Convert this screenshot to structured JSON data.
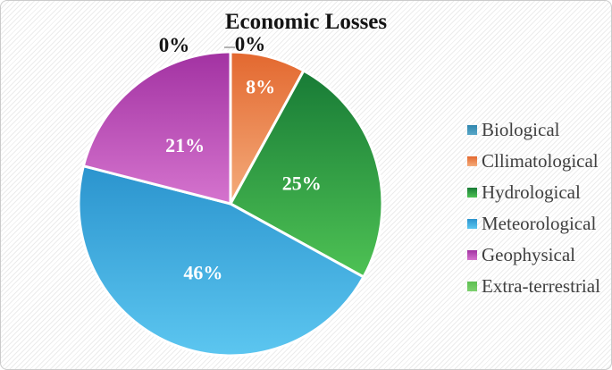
{
  "canvas": {
    "background_stripe_light": "#ffffff",
    "background_stripe_dark": "#ececec",
    "border_color": "#cbcbcb"
  },
  "chart_data": {
    "type": "pie",
    "title": "Economic Losses",
    "unit": "%",
    "start_angle_deg": 0,
    "direction": "clockwise",
    "legend_position": "right",
    "grid": false,
    "inside_label_color": "#ffffff",
    "outside_label_color": "#141414",
    "legend_text_color": "#3f3f3f",
    "slices": [
      {
        "label": "Biological",
        "value": 0,
        "display": "0%",
        "swatch": "#2f86ae",
        "grad_top": "#2f86ae",
        "grad_bottom": "#5aa8c8",
        "label_placement": "outside"
      },
      {
        "label": "Cllimatological",
        "value": 8,
        "display": "8%",
        "swatch": "#e87f51",
        "grad_top": "#e3682f",
        "grad_bottom": "#f4ac7c",
        "label_placement": "inside"
      },
      {
        "label": "Hydrological",
        "value": 25,
        "display": "25%",
        "swatch": "#27993d",
        "grad_top": "#187b36",
        "grad_bottom": "#4ec254",
        "label_placement": "inside"
      },
      {
        "label": "Meteorological",
        "value": 46,
        "display": "46%",
        "swatch": "#4ab2e3",
        "grad_top": "#2b94ce",
        "grad_bottom": "#5cc6f0",
        "label_placement": "inside"
      },
      {
        "label": "Geophysical",
        "value": 21,
        "display": "21%",
        "swatch": "#bc3ebc",
        "grad_top": "#a232a2",
        "grad_bottom": "#d574ce",
        "label_placement": "inside"
      },
      {
        "label": "Extra-terrestrial",
        "value": 0,
        "display": "0%",
        "swatch": "#5dbf51",
        "grad_top": "#5dbf51",
        "grad_bottom": "#7ed06f",
        "label_placement": "outside"
      }
    ]
  }
}
